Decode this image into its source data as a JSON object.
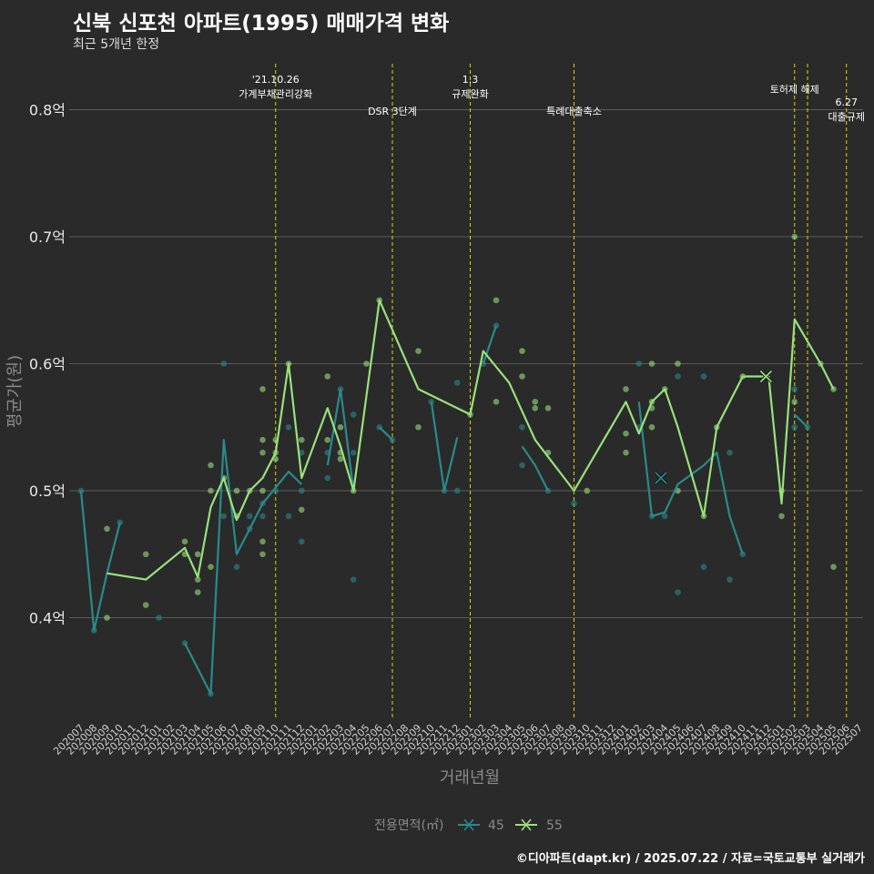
{
  "header": {
    "title": "신북 신포천 아파트(1995) 매매가격 변화",
    "subtitle": "최근 5개년 한정"
  },
  "caption": "©디아파트(dapt.kr) / 2025.07.22 / 자료=국토교통부 실거래가",
  "chart_data": {
    "type": "line",
    "xlabel": "거래년월",
    "ylabel": "평균가(원)",
    "ylim": [
      0.32,
      0.835
    ],
    "yticks": [
      {
        "v": 0.4,
        "label": "0.4억"
      },
      {
        "v": 0.5,
        "label": "0.5억"
      },
      {
        "v": 0.6,
        "label": "0.6억"
      },
      {
        "v": 0.7,
        "label": "0.7억"
      },
      {
        "v": 0.8,
        "label": "0.8억"
      }
    ],
    "categories": [
      "202007",
      "202008",
      "202009",
      "202010",
      "202011",
      "202012",
      "202101",
      "202102",
      "202103",
      "202104",
      "202105",
      "202106",
      "202107",
      "202108",
      "202109",
      "202110",
      "202111",
      "202112",
      "202201",
      "202202",
      "202203",
      "202204",
      "202205",
      "202206",
      "202207",
      "202208",
      "202209",
      "202210",
      "202211",
      "202212",
      "202301",
      "202302",
      "202303",
      "202304",
      "202305",
      "202306",
      "202307",
      "202308",
      "202309",
      "202310",
      "202311",
      "202312",
      "202401",
      "202402",
      "202403",
      "202404",
      "202405",
      "202406",
      "202407",
      "202408",
      "202409",
      "202410",
      "202411",
      "202412",
      "202501",
      "202502",
      "202503",
      "202504",
      "202505",
      "202506",
      "202507"
    ],
    "legend": {
      "title": "전용면적(㎡)",
      "position": "bottom"
    },
    "series": [
      {
        "name": "45",
        "color": "#2a8a8a",
        "line": [
          [
            0,
            0.5
          ],
          [
            1,
            0.39
          ],
          [
            2,
            0.435
          ],
          [
            3,
            0.475
          ],
          null,
          [
            8,
            0.38
          ],
          [
            10,
            0.34
          ],
          [
            11,
            0.54
          ],
          [
            12,
            0.45
          ],
          [
            13,
            0.47
          ],
          [
            14,
            0.49
          ],
          [
            16,
            0.515
          ],
          [
            17,
            0.505
          ],
          null,
          [
            19,
            0.52
          ],
          [
            20,
            0.58
          ],
          [
            21,
            0.5
          ],
          null,
          [
            23,
            0.55
          ],
          [
            24,
            0.54
          ],
          null,
          [
            27,
            0.57
          ],
          [
            28,
            0.5
          ],
          [
            29,
            0.542
          ],
          null,
          [
            31,
            0.6
          ],
          [
            32,
            0.63
          ],
          null,
          [
            34,
            0.535
          ],
          [
            35,
            0.52
          ],
          [
            36,
            0.5
          ],
          null,
          [
            43,
            0.57
          ],
          [
            44,
            0.48
          ],
          [
            45,
            0.483
          ],
          [
            46,
            0.505
          ],
          [
            48,
            0.52
          ],
          [
            49,
            0.53
          ],
          [
            50,
            0.48
          ],
          [
            51,
            0.45
          ],
          null,
          [
            55,
            0.56
          ],
          [
            56,
            0.55
          ]
        ],
        "points": [
          [
            0,
            0.5
          ],
          [
            1,
            0.39
          ],
          [
            3,
            0.475
          ],
          [
            6,
            0.4
          ],
          [
            8,
            0.38
          ],
          [
            10,
            0.34
          ],
          [
            11,
            0.6
          ],
          [
            11,
            0.48
          ],
          [
            12,
            0.44
          ],
          [
            13,
            0.48
          ],
          [
            13,
            0.47
          ],
          [
            14,
            0.49
          ],
          [
            14,
            0.48
          ],
          [
            15,
            0.5
          ],
          [
            16,
            0.55
          ],
          [
            16,
            0.48
          ],
          [
            17,
            0.46
          ],
          [
            17,
            0.5
          ],
          [
            17,
            0.53
          ],
          [
            19,
            0.51
          ],
          [
            19,
            0.53
          ],
          [
            20,
            0.58
          ],
          [
            21,
            0.43
          ],
          [
            21,
            0.56
          ],
          [
            21,
            0.53
          ],
          [
            23,
            0.55
          ],
          [
            24,
            0.54
          ],
          [
            27,
            0.57
          ],
          [
            28,
            0.5
          ],
          [
            29,
            0.585
          ],
          [
            29,
            0.5
          ],
          [
            31,
            0.6
          ],
          [
            32,
            0.63
          ],
          [
            34,
            0.52
          ],
          [
            34,
            0.55
          ],
          [
            36,
            0.5
          ],
          [
            38,
            0.49
          ],
          [
            43,
            0.6
          ],
          [
            43,
            0.55
          ],
          [
            44,
            0.48
          ],
          [
            45,
            0.48
          ],
          [
            46,
            0.42
          ],
          [
            46,
            0.59
          ],
          [
            48,
            0.44
          ],
          [
            48,
            0.59
          ],
          [
            50,
            0.43
          ],
          [
            50,
            0.53
          ],
          [
            51,
            0.45
          ],
          [
            55,
            0.58
          ],
          [
            55,
            0.55
          ],
          [
            56,
            0.55
          ]
        ]
      },
      {
        "name": "55",
        "color": "#98e27a",
        "line": [
          [
            2,
            0.435
          ],
          [
            5,
            0.43
          ],
          [
            8,
            0.455
          ],
          [
            9,
            0.432
          ],
          [
            10,
            0.487
          ],
          [
            11,
            0.51
          ],
          [
            12,
            0.477
          ],
          [
            13,
            0.5
          ],
          [
            14,
            0.51
          ],
          [
            15,
            0.53
          ],
          [
            16,
            0.6
          ],
          [
            17,
            0.51
          ],
          [
            19,
            0.565
          ],
          [
            20,
            0.535
          ],
          [
            21,
            0.5
          ],
          [
            23,
            0.65
          ],
          [
            26,
            0.58
          ],
          [
            30,
            0.56
          ],
          [
            31,
            0.61
          ],
          [
            33,
            0.585
          ],
          [
            35,
            0.54
          ],
          [
            38,
            0.5
          ],
          [
            42,
            0.57
          ],
          [
            43,
            0.545
          ],
          [
            44,
            0.57
          ],
          [
            45,
            0.58
          ],
          [
            46,
            0.55
          ],
          [
            48,
            0.48
          ],
          [
            49,
            0.55
          ],
          [
            51,
            0.59
          ],
          [
            53,
            0.59
          ],
          [
            54,
            0.49
          ],
          [
            55,
            0.635
          ],
          [
            57,
            0.6
          ],
          [
            58,
            0.58
          ]
        ],
        "points": [
          [
            2,
            0.47
          ],
          [
            2,
            0.4
          ],
          [
            5,
            0.45
          ],
          [
            5,
            0.41
          ],
          [
            8,
            0.46
          ],
          [
            8,
            0.45
          ],
          [
            9,
            0.45
          ],
          [
            9,
            0.43
          ],
          [
            9,
            0.42
          ],
          [
            10,
            0.52
          ],
          [
            10,
            0.5
          ],
          [
            10,
            0.44
          ],
          [
            11,
            0.51
          ],
          [
            12,
            0.5
          ],
          [
            12,
            0.48
          ],
          [
            13,
            0.5
          ],
          [
            14,
            0.58
          ],
          [
            14,
            0.54
          ],
          [
            14,
            0.53
          ],
          [
            14,
            0.5
          ],
          [
            14,
            0.46
          ],
          [
            14,
            0.45
          ],
          [
            15,
            0.54
          ],
          [
            15,
            0.53
          ],
          [
            15,
            0.525
          ],
          [
            16,
            0.6
          ],
          [
            17,
            0.54
          ],
          [
            17,
            0.485
          ],
          [
            19,
            0.59
          ],
          [
            19,
            0.54
          ],
          [
            20,
            0.55
          ],
          [
            20,
            0.525
          ],
          [
            20,
            0.53
          ],
          [
            21,
            0.5
          ],
          [
            22,
            0.6
          ],
          [
            23,
            0.65
          ],
          [
            26,
            0.61
          ],
          [
            26,
            0.55
          ],
          [
            30,
            0.56
          ],
          [
            32,
            0.65
          ],
          [
            32,
            0.57
          ],
          [
            34,
            0.61
          ],
          [
            34,
            0.59
          ],
          [
            35,
            0.57
          ],
          [
            35,
            0.565
          ],
          [
            36,
            0.565
          ],
          [
            36,
            0.53
          ],
          [
            39,
            0.5
          ],
          [
            42,
            0.58
          ],
          [
            42,
            0.545
          ],
          [
            42,
            0.53
          ],
          [
            44,
            0.6
          ],
          [
            44,
            0.57
          ],
          [
            44,
            0.565
          ],
          [
            44,
            0.55
          ],
          [
            45,
            0.58
          ],
          [
            46,
            0.6
          ],
          [
            46,
            0.5
          ],
          [
            48,
            0.48
          ],
          [
            49,
            0.55
          ],
          [
            51,
            0.59
          ],
          [
            54,
            0.48
          ],
          [
            54,
            0.5
          ],
          [
            55,
            0.7
          ],
          [
            55,
            0.57
          ],
          [
            57,
            0.6
          ],
          [
            58,
            0.58
          ],
          [
            58,
            0.44
          ]
        ]
      }
    ],
    "x_markers": [
      [
        44.7,
        0.51,
        "45"
      ],
      [
        52.8,
        0.59,
        "55"
      ]
    ],
    "events": [
      {
        "x": 15,
        "lines": [
          "'21.10.26",
          "가계부채관리강화"
        ],
        "row": 0
      },
      {
        "x": 24,
        "lines": [
          "DSR 3단계"
        ],
        "row": 1
      },
      {
        "x": 30,
        "lines": [
          "1.3",
          "규제완화"
        ],
        "row": 0
      },
      {
        "x": 38,
        "lines": [
          "특례대출축소"
        ],
        "row": 1
      },
      {
        "x": 55,
        "lines": [
          "토허제 해제"
        ],
        "row": 2
      },
      {
        "x": 56,
        "lines": [],
        "row": 0
      },
      {
        "x": 59,
        "lines": [
          "6.27",
          "대출규제"
        ],
        "row": 3
      }
    ],
    "grid": true
  }
}
